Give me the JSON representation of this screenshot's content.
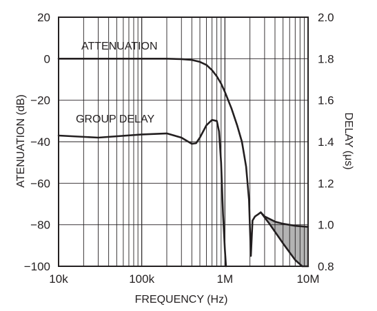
{
  "chart_data": {
    "type": "line",
    "title": "",
    "xlabel": "FREQUENCY (Hz)",
    "ylabel_left": "ATENUATION (dB)",
    "ylabel_right": "DELAY (μs)",
    "x_scale": "log",
    "xlim": [
      10000,
      10000000
    ],
    "ylim_left": [
      -100,
      20
    ],
    "ylim_right": [
      0.8,
      2.0
    ],
    "x_tick_values": [
      10000,
      100000,
      1000000,
      10000000
    ],
    "x_tick_labels": [
      "10k",
      "100k",
      "1M",
      "10M"
    ],
    "y_left_ticks": [
      "20",
      "0",
      "−20",
      "−40",
      "−60",
      "−80",
      "−100"
    ],
    "y_right_ticks": [
      "2.0",
      "1.8",
      "1.6",
      "1.4",
      "1.2",
      "1.0",
      "0.8"
    ],
    "grid": true,
    "annotations": [
      {
        "text": "ATTENUATION",
        "series": "attenuation"
      },
      {
        "text": "GROUP DELAY",
        "series": "group_delay"
      }
    ],
    "shaded_region": {
      "between": "stopband attenuation envelope",
      "x_range": [
        2700000,
        10000000
      ],
      "color": "#b3b3b3"
    },
    "series": [
      {
        "key": "attenuation",
        "axis": "left",
        "x": [
          10000,
          30000,
          100000,
          200000,
          300000,
          400000,
          500000,
          600000,
          700000,
          800000,
          900000,
          1000000,
          1200000,
          1400000,
          1600000,
          1800000,
          1950000,
          2050000,
          2150000,
          2300000,
          2500000,
          2700000,
          3000000,
          4000000,
          5000000,
          7000000,
          10000000
        ],
        "y": [
          0,
          0,
          0,
          0,
          -0.2,
          -0.6,
          -1.5,
          -3,
          -5.5,
          -8.5,
          -12,
          -16,
          -24,
          -32,
          -40,
          -52,
          -68,
          -95,
          -78,
          -76,
          -75,
          -74,
          -76,
          -78.5,
          -79.5,
          -80.5,
          -81
        ]
      },
      {
        "key": "attenuation_lower_envelope",
        "axis": "left",
        "x": [
          2700000,
          3500000,
          5000000,
          7000000,
          8500000,
          10000000
        ],
        "y": [
          -74,
          -80,
          -89,
          -97,
          -100,
          -100
        ]
      },
      {
        "key": "group_delay",
        "axis": "right",
        "x": [
          10000,
          30000,
          100000,
          200000,
          300000,
          400000,
          450000,
          500000,
          600000,
          700000,
          800000,
          850000,
          900000,
          950000,
          1000000,
          1030000
        ],
        "y": [
          1.43,
          1.42,
          1.435,
          1.44,
          1.42,
          1.39,
          1.393,
          1.42,
          1.48,
          1.505,
          1.5,
          1.45,
          1.3,
          1.05,
          0.88,
          0.8
        ]
      }
    ]
  }
}
